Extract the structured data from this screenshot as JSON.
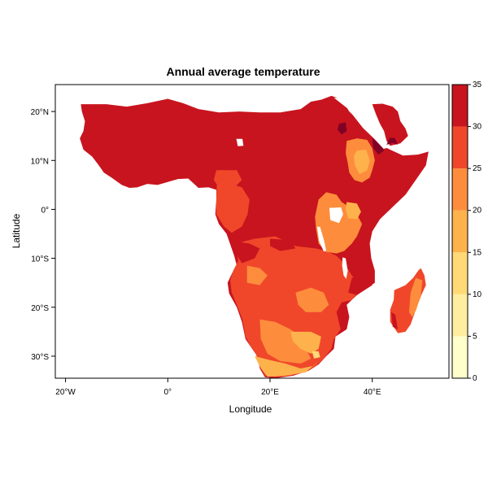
{
  "chart_data": {
    "type": "heatmap",
    "title": "Annual average temperature",
    "xlabel": "Longitude",
    "ylabel": "Latitude",
    "xlim": [
      -22,
      55
    ],
    "ylim": [
      -34.5,
      25.5
    ],
    "x_ticks": [
      {
        "value": -20,
        "label": "20°W"
      },
      {
        "value": 0,
        "label": "0°"
      },
      {
        "value": 20,
        "label": "20°E"
      },
      {
        "value": 40,
        "label": "40°E"
      }
    ],
    "y_ticks": [
      {
        "value": 20,
        "label": "20°N"
      },
      {
        "value": 10,
        "label": "10°N"
      },
      {
        "value": 0,
        "label": "0°"
      },
      {
        "value": -10,
        "label": "10°S"
      },
      {
        "value": -20,
        "label": "20°S"
      },
      {
        "value": -30,
        "label": "30°S"
      }
    ],
    "colorbar": {
      "breaks": [
        0,
        5,
        10,
        15,
        20,
        25,
        30,
        35
      ],
      "colors": [
        "#FFFFCC",
        "#FFEDA0",
        "#FED976",
        "#FEB24C",
        "#FD8D3C",
        "#F0472B",
        "#C8141E",
        "#800026"
      ]
    }
  }
}
